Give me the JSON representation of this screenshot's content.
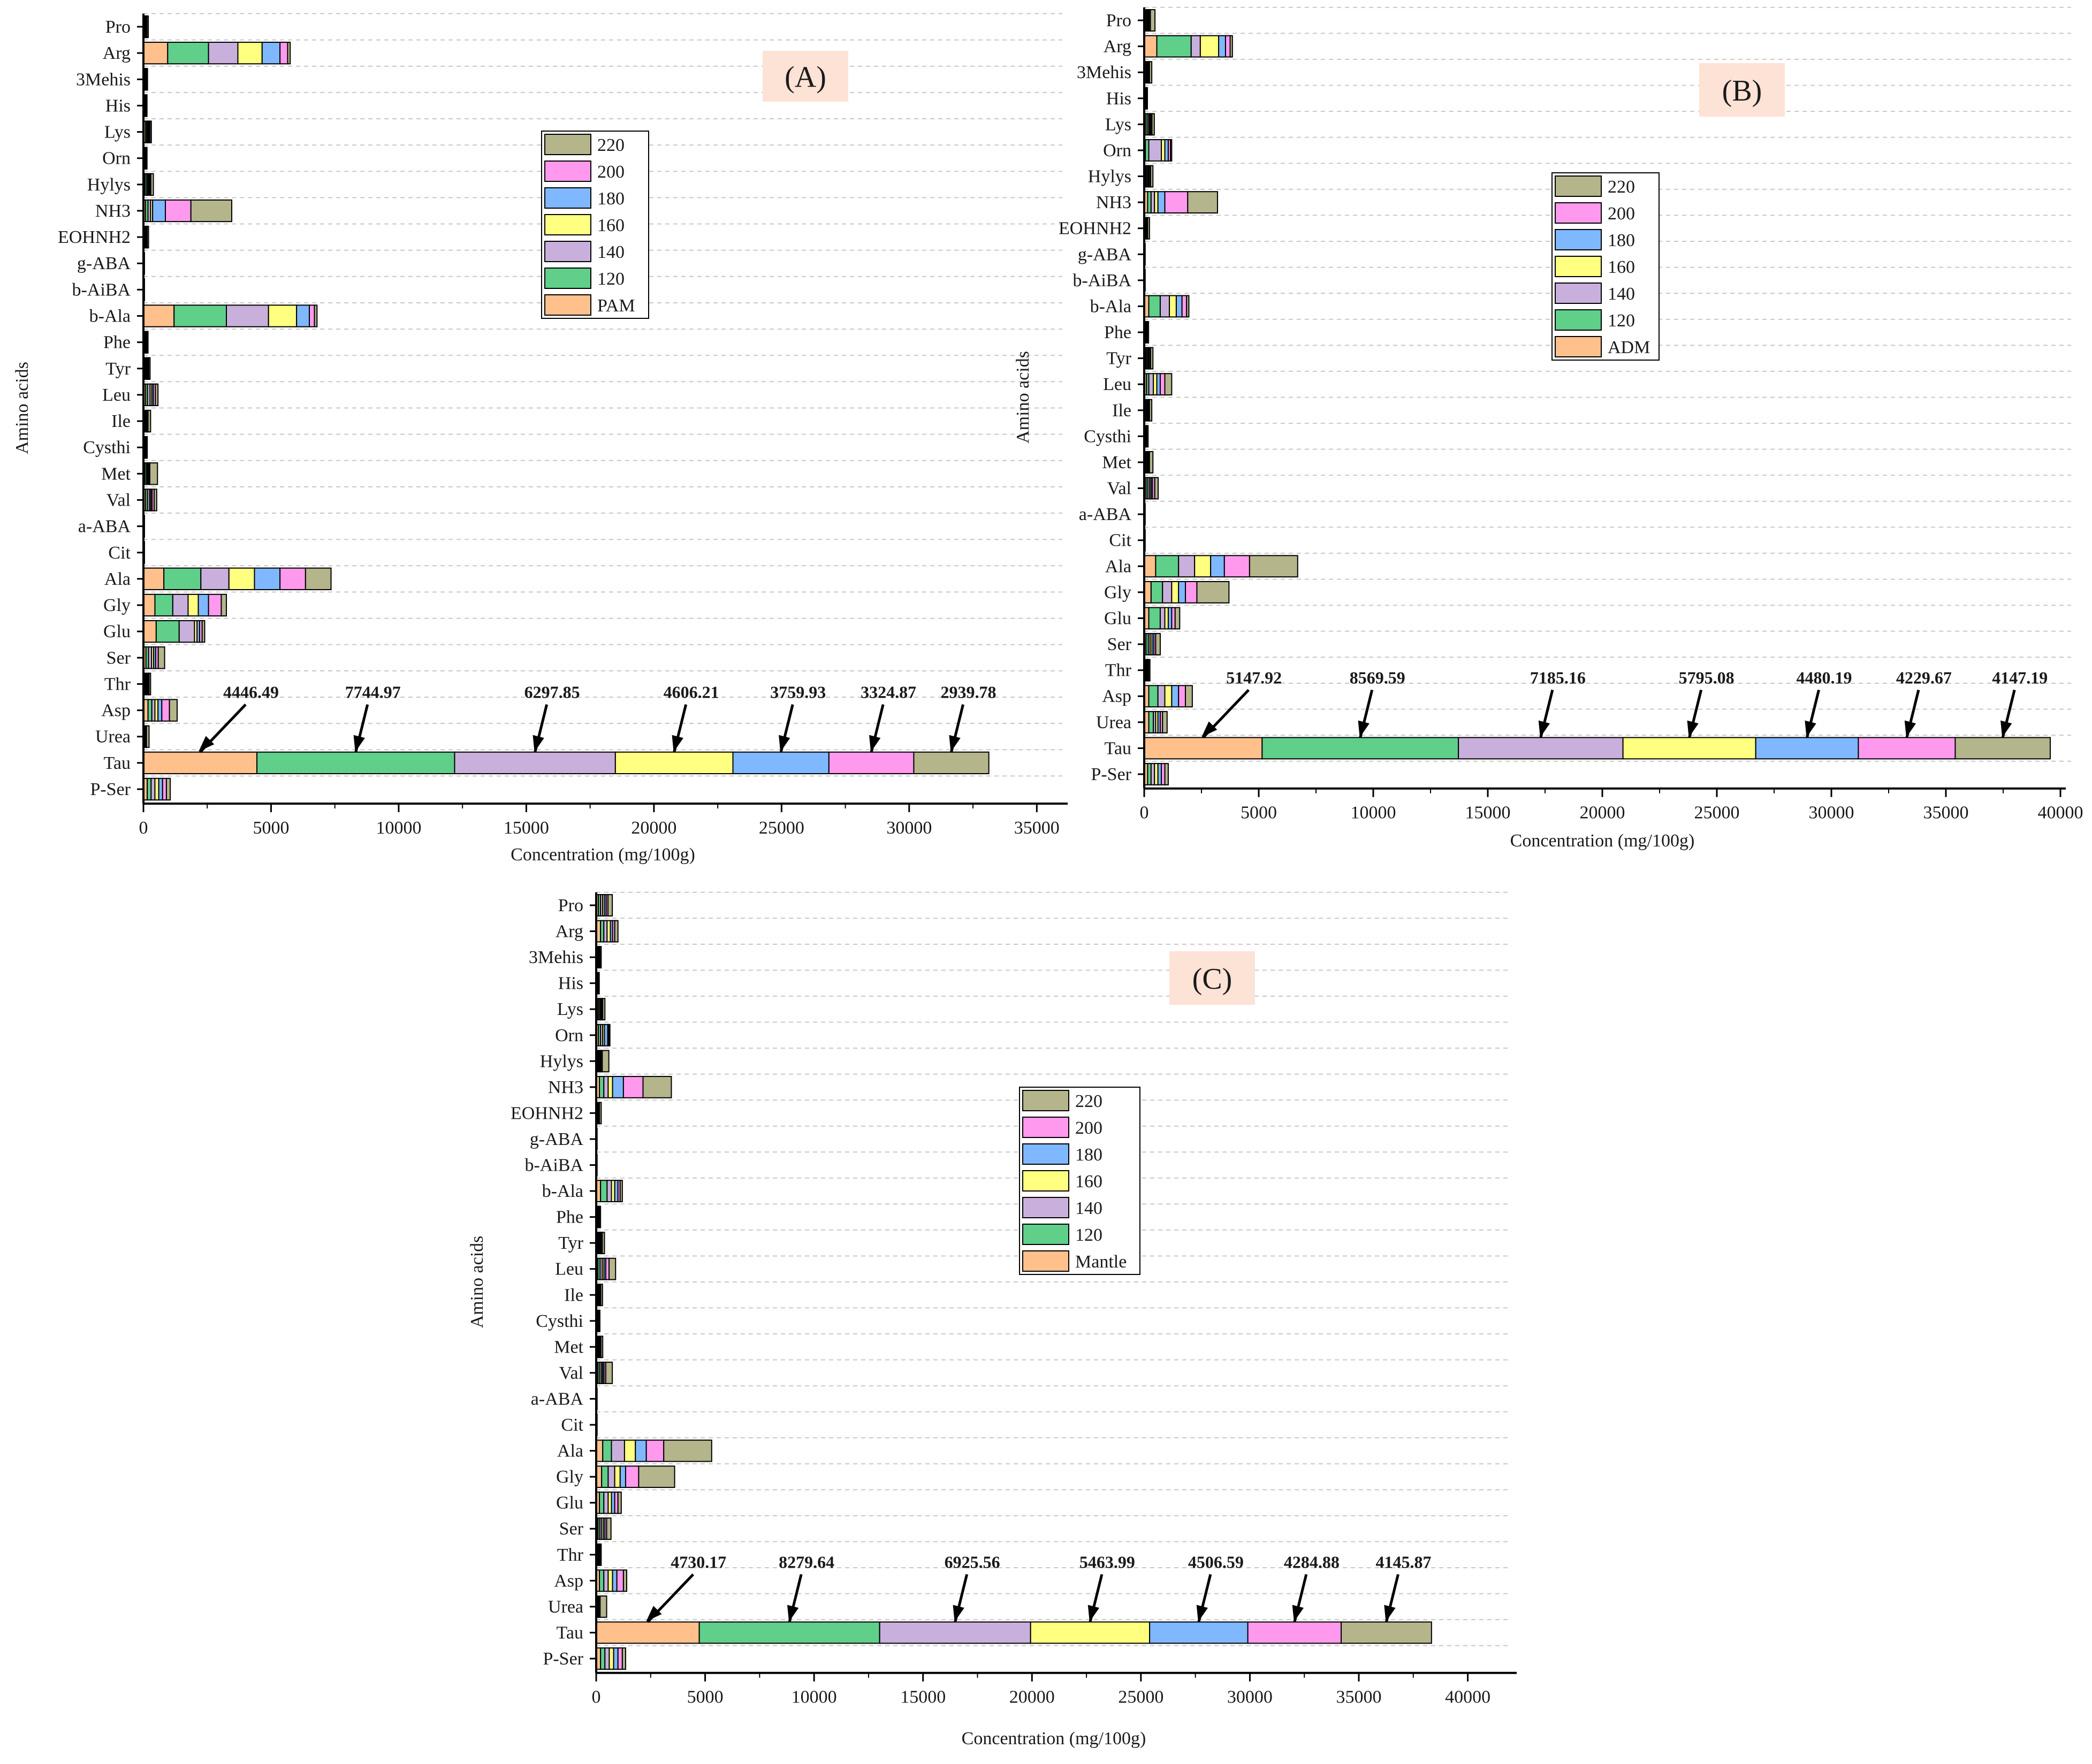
{
  "colors": {
    "220": "#b5b58c",
    "200": "#ff99ee",
    "180": "#7fb8ff",
    "160": "#ffff80",
    "140": "#c9b0dc",
    "120": "#5fcf8a",
    "base": "#ffc08c",
    "label_bg": "#fde2d6",
    "axis": "#000000",
    "grid": "#c8c8c8"
  },
  "chart_data": [
    {
      "id": "A",
      "type": "bar",
      "orientation": "horizontal",
      "stacked": true,
      "panel_label": "(A)",
      "xlabel": "Concentration (mg/100g)",
      "ylabel": "Amino acids",
      "xlim": [
        0,
        36000
      ],
      "xticks": [
        "0",
        "5000",
        "10000",
        "15000",
        "20000",
        "25000",
        "30000",
        "35000"
      ],
      "categories": [
        "P-Ser",
        "Tau",
        "Urea",
        "Asp",
        "Thr",
        "Ser",
        "Glu",
        "Gly",
        "Ala",
        "Cit",
        "a-ABA",
        "Val",
        "Met",
        "Cysthi",
        "Ile",
        "Leu",
        "Tyr",
        "Phe",
        "b-Ala",
        "b-AiBA",
        "g-ABA",
        "EOHNH2",
        "NH3",
        "Hylys",
        "Orn",
        "Lys",
        "His",
        "3Mehis",
        "Arg",
        "Pro"
      ],
      "legend": [
        "220",
        "200",
        "180",
        "160",
        "140",
        "120",
        "PAM"
      ],
      "series": [
        {
          "name": "PAM",
          "color_key": "base",
          "values": [
            150,
            4446.49,
            20,
            180,
            60,
            100,
            500,
            450,
            800,
            5,
            5,
            80,
            60,
            20,
            50,
            80,
            50,
            30,
            1200,
            5,
            5,
            30,
            80,
            60,
            20,
            80,
            20,
            30,
            950,
            30
          ]
        },
        {
          "name": "120",
          "color_key": "120",
          "values": [
            150,
            7744.97,
            20,
            150,
            40,
            100,
            900,
            700,
            1450,
            5,
            5,
            80,
            60,
            20,
            40,
            80,
            40,
            30,
            2050,
            5,
            5,
            30,
            100,
            60,
            20,
            50,
            20,
            20,
            1600,
            30
          ]
        },
        {
          "name": "140",
          "color_key": "140",
          "values": [
            150,
            6297.85,
            20,
            120,
            30,
            120,
            600,
            600,
            1100,
            5,
            5,
            80,
            40,
            20,
            30,
            100,
            40,
            20,
            1650,
            5,
            5,
            30,
            100,
            50,
            20,
            40,
            20,
            20,
            1150,
            20
          ]
        },
        {
          "name": "160",
          "color_key": "160",
          "values": [
            150,
            4606.21,
            20,
            120,
            30,
            80,
            100,
            400,
            1000,
            5,
            5,
            50,
            30,
            20,
            20,
            70,
            30,
            20,
            1100,
            5,
            5,
            20,
            80,
            40,
            20,
            30,
            20,
            20,
            950,
            20
          ]
        },
        {
          "name": "180",
          "color_key": "180",
          "values": [
            150,
            3759.93,
            20,
            150,
            30,
            80,
            100,
            400,
            1000,
            5,
            5,
            50,
            30,
            20,
            20,
            60,
            20,
            20,
            500,
            5,
            5,
            20,
            500,
            40,
            20,
            30,
            20,
            20,
            700,
            20
          ]
        },
        {
          "name": "200",
          "color_key": "200",
          "values": [
            150,
            3324.87,
            20,
            300,
            30,
            100,
            100,
            500,
            1000,
            5,
            5,
            80,
            30,
            20,
            20,
            80,
            30,
            20,
            200,
            5,
            5,
            20,
            1000,
            40,
            20,
            30,
            20,
            20,
            300,
            20
          ]
        },
        {
          "name": "220",
          "color_key": "220",
          "values": [
            150,
            2939.78,
            100,
            300,
            60,
            250,
            100,
            200,
            1000,
            5,
            5,
            100,
            300,
            30,
            100,
            100,
            50,
            40,
            100,
            5,
            5,
            50,
            1600,
            100,
            20,
            50,
            20,
            30,
            100,
            50
          ]
        }
      ]
    },
    {
      "id": "B",
      "type": "bar",
      "orientation": "horizontal",
      "stacked": true,
      "panel_label": "(B)",
      "xlabel": "Concentration (mg/100g)",
      "ylabel": "Amino acids",
      "xlim": [
        0,
        40000
      ],
      "xticks": [
        "0",
        "5000",
        "10000",
        "15000",
        "20000",
        "25000",
        "30000",
        "35000",
        "40000"
      ],
      "categories": [
        "P-Ser",
        "Tau",
        "Urea",
        "Asp",
        "Thr",
        "Ser",
        "Glu",
        "Gly",
        "Ala",
        "Cit",
        "a-ABA",
        "Val",
        "Met",
        "Cysthi",
        "Ile",
        "Leu",
        "Tyr",
        "Phe",
        "b-Ala",
        "b-AiBA",
        "g-ABA",
        "EOHNH2",
        "NH3",
        "Hylys",
        "Orn",
        "Lys",
        "His",
        "3Mehis",
        "Arg",
        "Pro"
      ],
      "legend": [
        "220",
        "200",
        "180",
        "160",
        "140",
        "120",
        "ADM"
      ],
      "series": [
        {
          "name": "ADM",
          "color_key": "base",
          "values": [
            150,
            5147.92,
            200,
            200,
            40,
            80,
            200,
            300,
            500,
            5,
            5,
            80,
            50,
            20,
            50,
            100,
            50,
            30,
            200,
            5,
            5,
            30,
            150,
            50,
            50,
            80,
            20,
            50,
            550,
            50
          ]
        },
        {
          "name": "120",
          "color_key": "120",
          "values": [
            150,
            8569.59,
            200,
            400,
            40,
            100,
            500,
            500,
            1000,
            5,
            5,
            80,
            50,
            20,
            50,
            100,
            50,
            30,
            500,
            5,
            5,
            30,
            150,
            50,
            150,
            80,
            20,
            50,
            1500,
            50
          ]
        },
        {
          "name": "140",
          "color_key": "140",
          "values": [
            150,
            7185.16,
            100,
            300,
            30,
            80,
            200,
            400,
            700,
            5,
            5,
            80,
            40,
            20,
            40,
            200,
            50,
            20,
            400,
            5,
            5,
            30,
            150,
            50,
            550,
            60,
            20,
            40,
            400,
            40
          ]
        },
        {
          "name": "160",
          "color_key": "160",
          "values": [
            150,
            5795.08,
            100,
            300,
            30,
            80,
            150,
            300,
            700,
            5,
            5,
            60,
            30,
            20,
            30,
            150,
            40,
            20,
            300,
            5,
            5,
            20,
            150,
            40,
            150,
            40,
            20,
            30,
            800,
            40
          ]
        },
        {
          "name": "180",
          "color_key": "180",
          "values": [
            150,
            4480.19,
            100,
            300,
            30,
            80,
            150,
            300,
            600,
            5,
            5,
            60,
            30,
            20,
            30,
            150,
            40,
            20,
            250,
            5,
            5,
            20,
            300,
            40,
            150,
            40,
            20,
            30,
            300,
            40
          ]
        },
        {
          "name": "200",
          "color_key": "200",
          "values": [
            150,
            4229.67,
            100,
            300,
            30,
            80,
            150,
            500,
            1100,
            5,
            5,
            100,
            30,
            20,
            30,
            200,
            50,
            20,
            200,
            5,
            5,
            20,
            1000,
            50,
            100,
            40,
            20,
            30,
            200,
            50
          ]
        },
        {
          "name": "220",
          "color_key": "220",
          "values": [
            150,
            4147.19,
            200,
            300,
            50,
            200,
            200,
            1400,
            2100,
            5,
            5,
            150,
            150,
            50,
            100,
            300,
            100,
            50,
            100,
            5,
            5,
            80,
            1300,
            100,
            50,
            100,
            20,
            100,
            100,
            200
          ]
        }
      ]
    },
    {
      "id": "C",
      "type": "bar",
      "orientation": "horizontal",
      "stacked": true,
      "panel_label": "(C)",
      "xlabel": "Concentration (mg/100g)",
      "ylabel": "Amino acids",
      "xlim": [
        0,
        42000
      ],
      "xticks": [
        "0",
        "5000",
        "10000",
        "15000",
        "20000",
        "25000",
        "30000",
        "35000",
        "40000"
      ],
      "categories": [
        "P-Ser",
        "Tau",
        "Urea",
        "Asp",
        "Thr",
        "Ser",
        "Glu",
        "Gly",
        "Ala",
        "Cit",
        "a-ABA",
        "Val",
        "Met",
        "Cysthi",
        "Ile",
        "Leu",
        "Tyr",
        "Phe",
        "b-Ala",
        "b-AiBA",
        "g-ABA",
        "EOHNH2",
        "NH3",
        "Hylys",
        "Orn",
        "Lys",
        "His",
        "3Mehis",
        "Arg",
        "Pro"
      ],
      "legend": [
        "220",
        "200",
        "180",
        "160",
        "140",
        "120",
        "Mantle"
      ],
      "series": [
        {
          "name": "Mantle",
          "color_key": "base",
          "values": [
            200,
            4730.17,
            30,
            150,
            30,
            80,
            150,
            250,
            300,
            5,
            5,
            80,
            50,
            20,
            40,
            80,
            50,
            30,
            200,
            5,
            5,
            30,
            150,
            50,
            100,
            60,
            20,
            30,
            200,
            100
          ]
        },
        {
          "name": "120",
          "color_key": "120",
          "values": [
            200,
            8279.64,
            30,
            200,
            30,
            80,
            200,
            300,
            400,
            5,
            5,
            80,
            40,
            20,
            40,
            100,
            50,
            30,
            300,
            5,
            5,
            30,
            200,
            50,
            100,
            60,
            20,
            30,
            150,
            100
          ]
        },
        {
          "name": "140",
          "color_key": "140",
          "values": [
            200,
            6925.56,
            30,
            200,
            30,
            80,
            200,
            300,
            600,
            5,
            5,
            80,
            40,
            20,
            40,
            100,
            50,
            30,
            200,
            5,
            5,
            30,
            200,
            50,
            100,
            60,
            20,
            30,
            150,
            100
          ]
        },
        {
          "name": "160",
          "color_key": "160",
          "values": [
            200,
            5463.99,
            30,
            200,
            30,
            80,
            150,
            250,
            500,
            5,
            5,
            60,
            30,
            20,
            30,
            80,
            40,
            20,
            150,
            5,
            5,
            20,
            200,
            40,
            80,
            40,
            20,
            30,
            150,
            80
          ]
        },
        {
          "name": "180",
          "color_key": "180",
          "values": [
            200,
            4506.59,
            30,
            200,
            30,
            80,
            150,
            250,
            500,
            5,
            5,
            60,
            30,
            20,
            30,
            80,
            40,
            20,
            150,
            5,
            5,
            20,
            500,
            40,
            150,
            40,
            20,
            30,
            100,
            80
          ]
        },
        {
          "name": "200",
          "color_key": "200",
          "values": [
            200,
            4284.88,
            30,
            300,
            30,
            80,
            150,
            600,
            800,
            5,
            5,
            80,
            30,
            20,
            30,
            150,
            50,
            20,
            100,
            5,
            5,
            20,
            900,
            50,
            50,
            40,
            20,
            30,
            100,
            80
          ]
        },
        {
          "name": "220",
          "color_key": "220",
          "values": [
            150,
            4145.87,
            300,
            150,
            50,
            200,
            150,
            1650,
            2200,
            5,
            5,
            300,
            80,
            50,
            80,
            300,
            100,
            50,
            100,
            5,
            5,
            80,
            1300,
            300,
            50,
            100,
            20,
            50,
            150,
            200
          ]
        }
      ]
    }
  ]
}
